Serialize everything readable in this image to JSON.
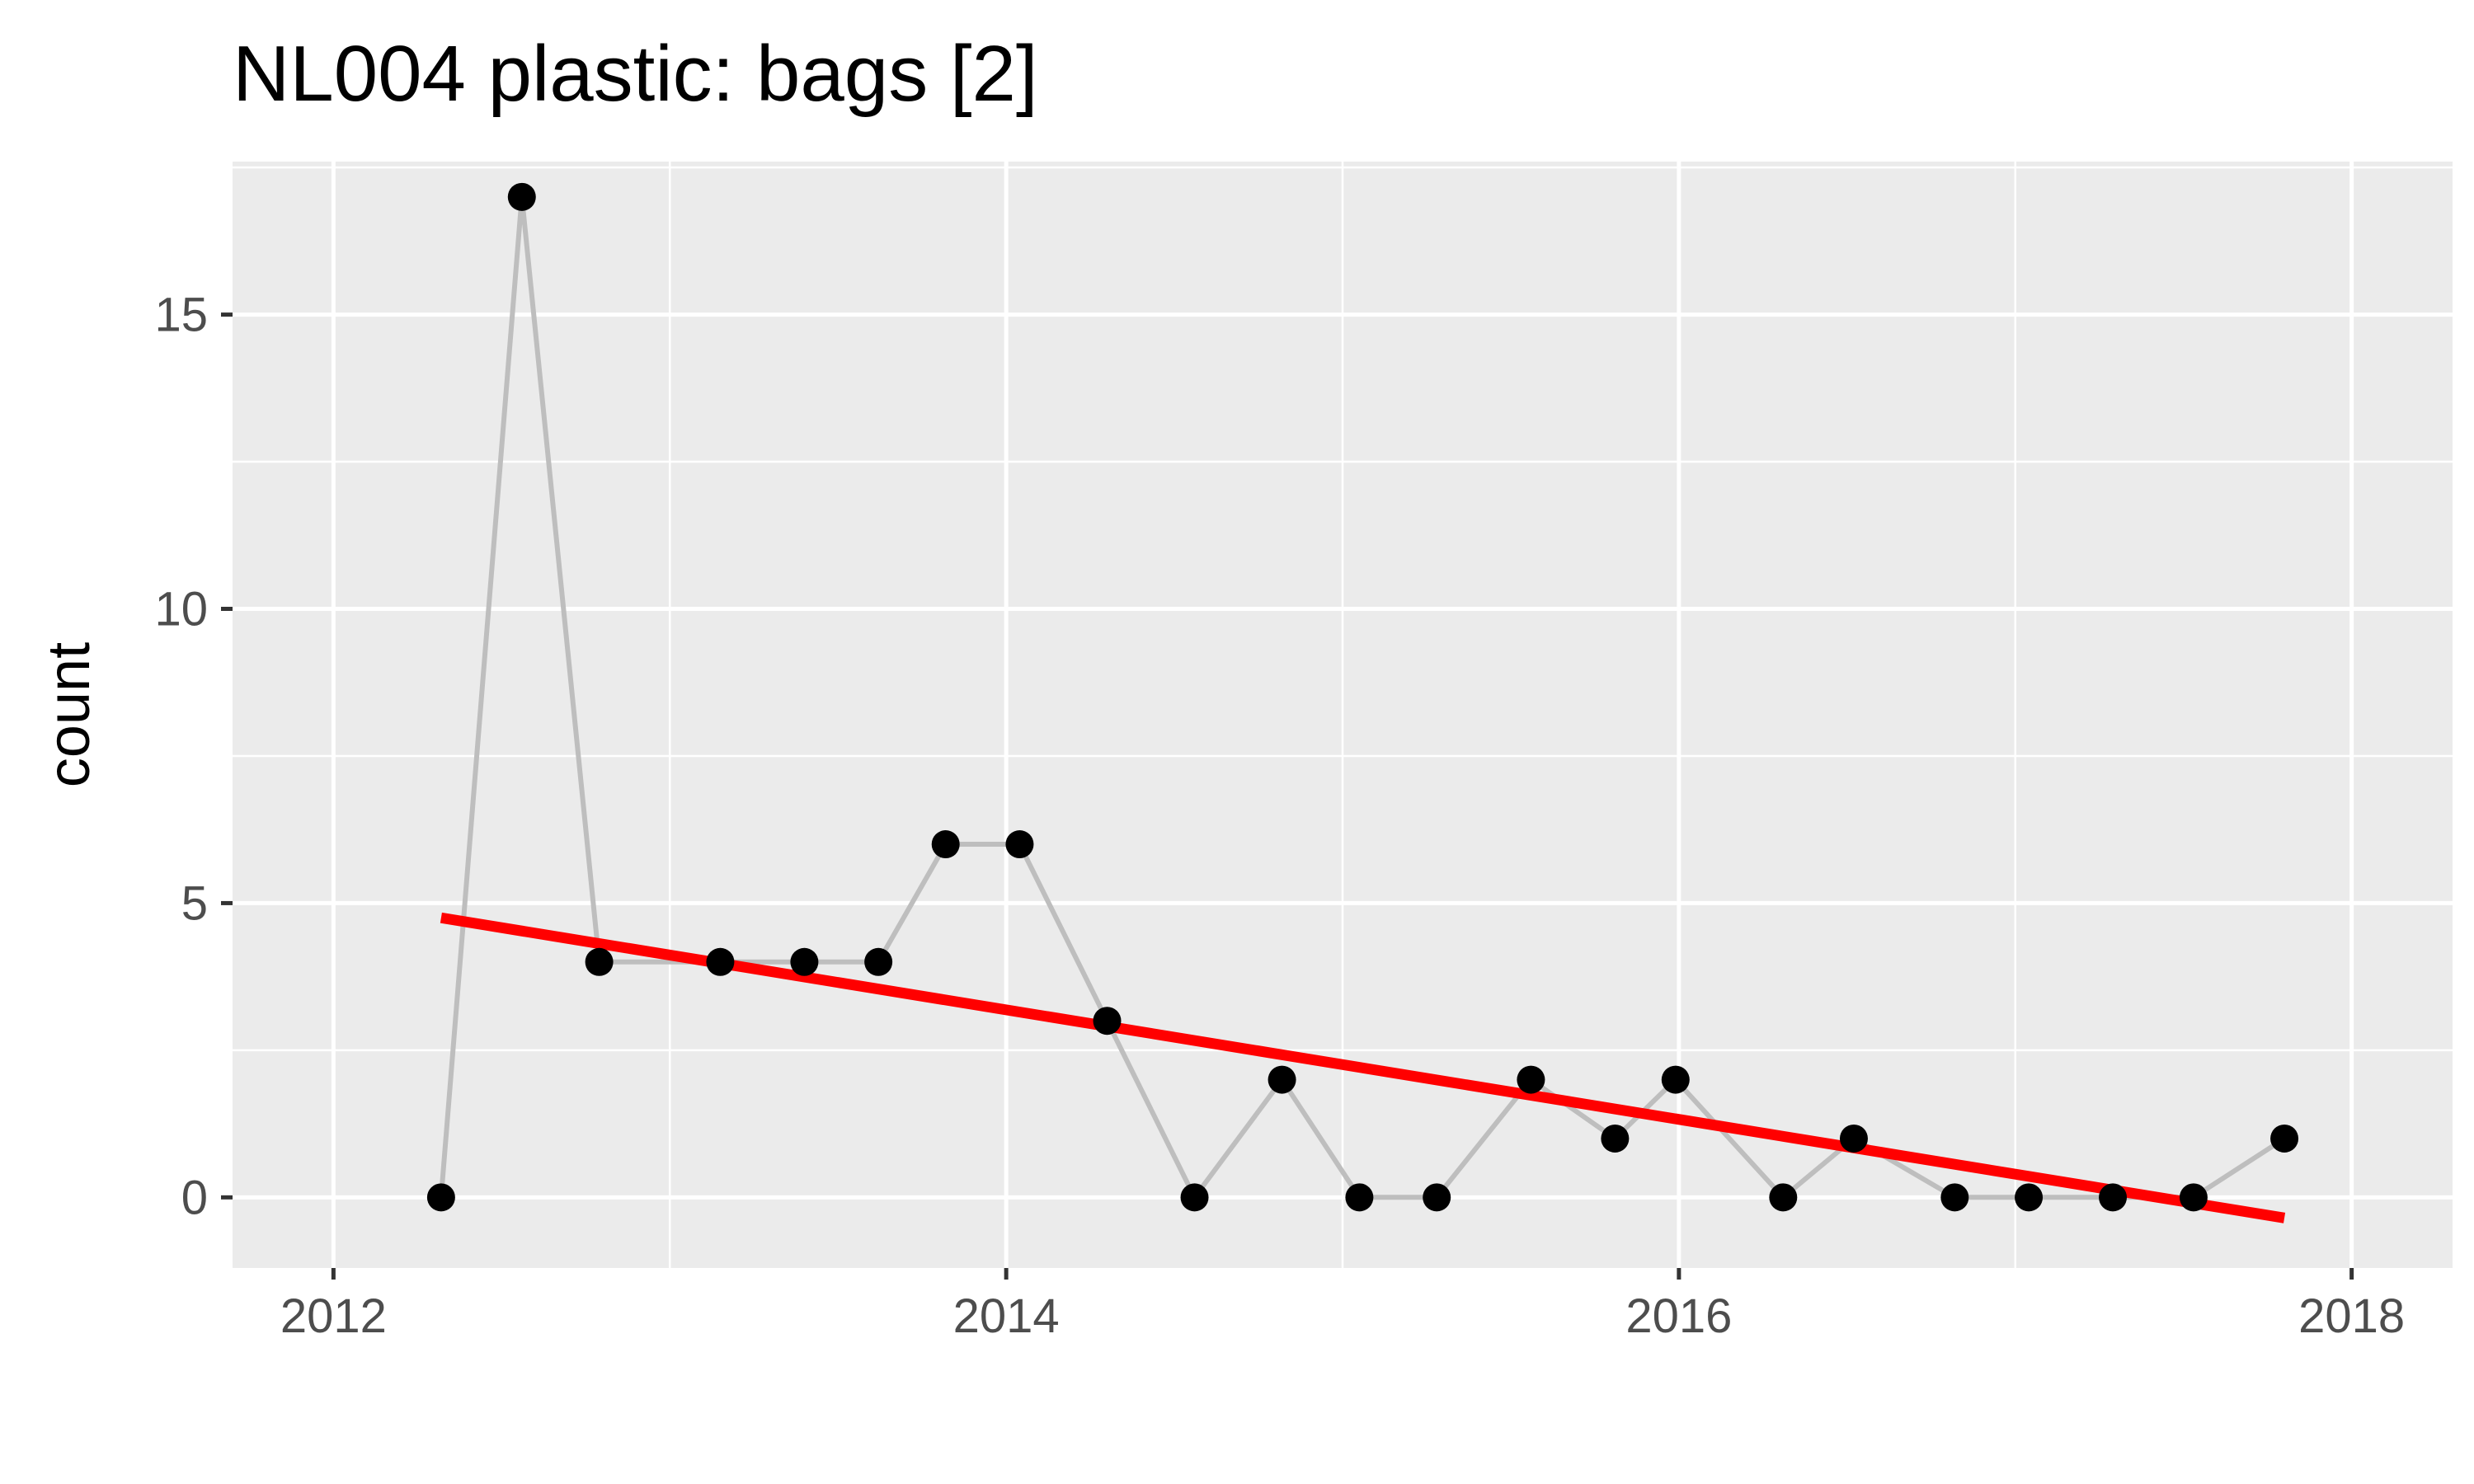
{
  "chart_data": {
    "type": "line",
    "title": "NL004  plastic: bags [2]",
    "xlabel": "",
    "ylabel": "count",
    "x_ticks": [
      2012,
      2014,
      2016,
      2018
    ],
    "y_ticks": [
      0,
      5,
      10,
      15
    ],
    "xlim": [
      2011.7,
      2018.3
    ],
    "ylim": [
      -1.2,
      17.6
    ],
    "grid": true,
    "colors": {
      "panel_background": "#ebebeb",
      "gridline": "#ffffff",
      "connecting_line": "#bebebe",
      "points": "#000000",
      "trend_line": "#ff0000",
      "tick_label": "#4d4d4d"
    },
    "series": [
      {
        "x": [
          2012.32,
          2012.56,
          2012.79,
          2013.15,
          2013.4,
          2013.62,
          2013.82,
          2014.04,
          2014.3,
          2014.56,
          2014.82,
          2015.05,
          2015.28,
          2015.56,
          2015.81,
          2015.99,
          2016.31,
          2016.52,
          2016.82,
          2017.04,
          2017.29,
          2017.53,
          2017.8
        ],
        "y": [
          0,
          17,
          4,
          4,
          4,
          4,
          6,
          6,
          3,
          0,
          2,
          0,
          0,
          2,
          1,
          2,
          0,
          1,
          0,
          0,
          0,
          0,
          1
        ]
      }
    ],
    "trend": {
      "x": [
        2012.32,
        2017.8
      ],
      "y": [
        4.75,
        -0.35
      ]
    }
  }
}
